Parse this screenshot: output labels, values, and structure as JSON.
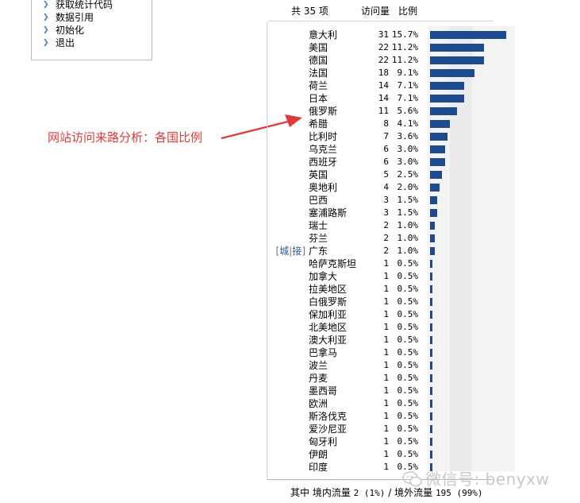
{
  "menu": {
    "items": [
      {
        "label": "获取统计代码"
      },
      {
        "label": "数据引用"
      },
      {
        "label": "初始化"
      },
      {
        "label": "退出"
      }
    ]
  },
  "annotation": {
    "text": "网站访问来路分析：各国比例",
    "color": "#e03a3a"
  },
  "header": {
    "total": "共 35 项",
    "visits": "访问量",
    "ratio": "比例"
  },
  "row_links": {
    "city": "城",
    "sep": "|",
    "detail": "接"
  },
  "colors": {
    "bar": "#1d4a8e",
    "link": "#2a5a9e",
    "annotation": "#e03a3a"
  },
  "chart_data": {
    "type": "bar",
    "orientation": "horizontal",
    "categories": [
      "意大利",
      "美国",
      "德国",
      "法国",
      "荷兰",
      "日本",
      "俄罗斯",
      "希腊",
      "比利时",
      "乌克兰",
      "西班牙",
      "英国",
      "奥地利",
      "巴西",
      "塞浦路斯",
      "瑞士",
      "芬兰",
      "广东",
      "哈萨克斯坦",
      "加拿大",
      "拉美地区",
      "白俄罗斯",
      "保加利亚",
      "北美地区",
      "澳大利亚",
      "巴拿马",
      "波兰",
      "丹麦",
      "墨西哥",
      "欧洲",
      "斯洛伐克",
      "爱沙尼亚",
      "匈牙利",
      "伊朗",
      "印度"
    ],
    "values": [
      31,
      22,
      22,
      18,
      14,
      14,
      11,
      8,
      7,
      6,
      6,
      5,
      4,
      3,
      3,
      2,
      2,
      2,
      1,
      1,
      1,
      1,
      1,
      1,
      1,
      1,
      1,
      1,
      1,
      1,
      1,
      1,
      1,
      1,
      1
    ],
    "percents": [
      "15.7%",
      "11.2%",
      "11.2%",
      "9.1%",
      "7.1%",
      "7.1%",
      "5.6%",
      "4.1%",
      "3.6%",
      "3.0%",
      "3.0%",
      "2.5%",
      "2.0%",
      "1.5%",
      "1.5%",
      "1.0%",
      "1.0%",
      "1.0%",
      "0.5%",
      "0.5%",
      "0.5%",
      "0.5%",
      "0.5%",
      "0.5%",
      "0.5%",
      "0.5%",
      "0.5%",
      "0.5%",
      "0.5%",
      "0.5%",
      "0.5%",
      "0.5%",
      "0.5%",
      "0.5%",
      "0.5%"
    ],
    "link_row": "广东"
  },
  "footer": {
    "prefix": "其中 境内流量",
    "domestic": "2 (1%)",
    "sep": "/",
    "foreign_label": "境外流量",
    "foreign": "195 (99%)"
  },
  "watermark": {
    "text": "微信号: benyxw",
    "icon": "wechat-logo-icon"
  }
}
